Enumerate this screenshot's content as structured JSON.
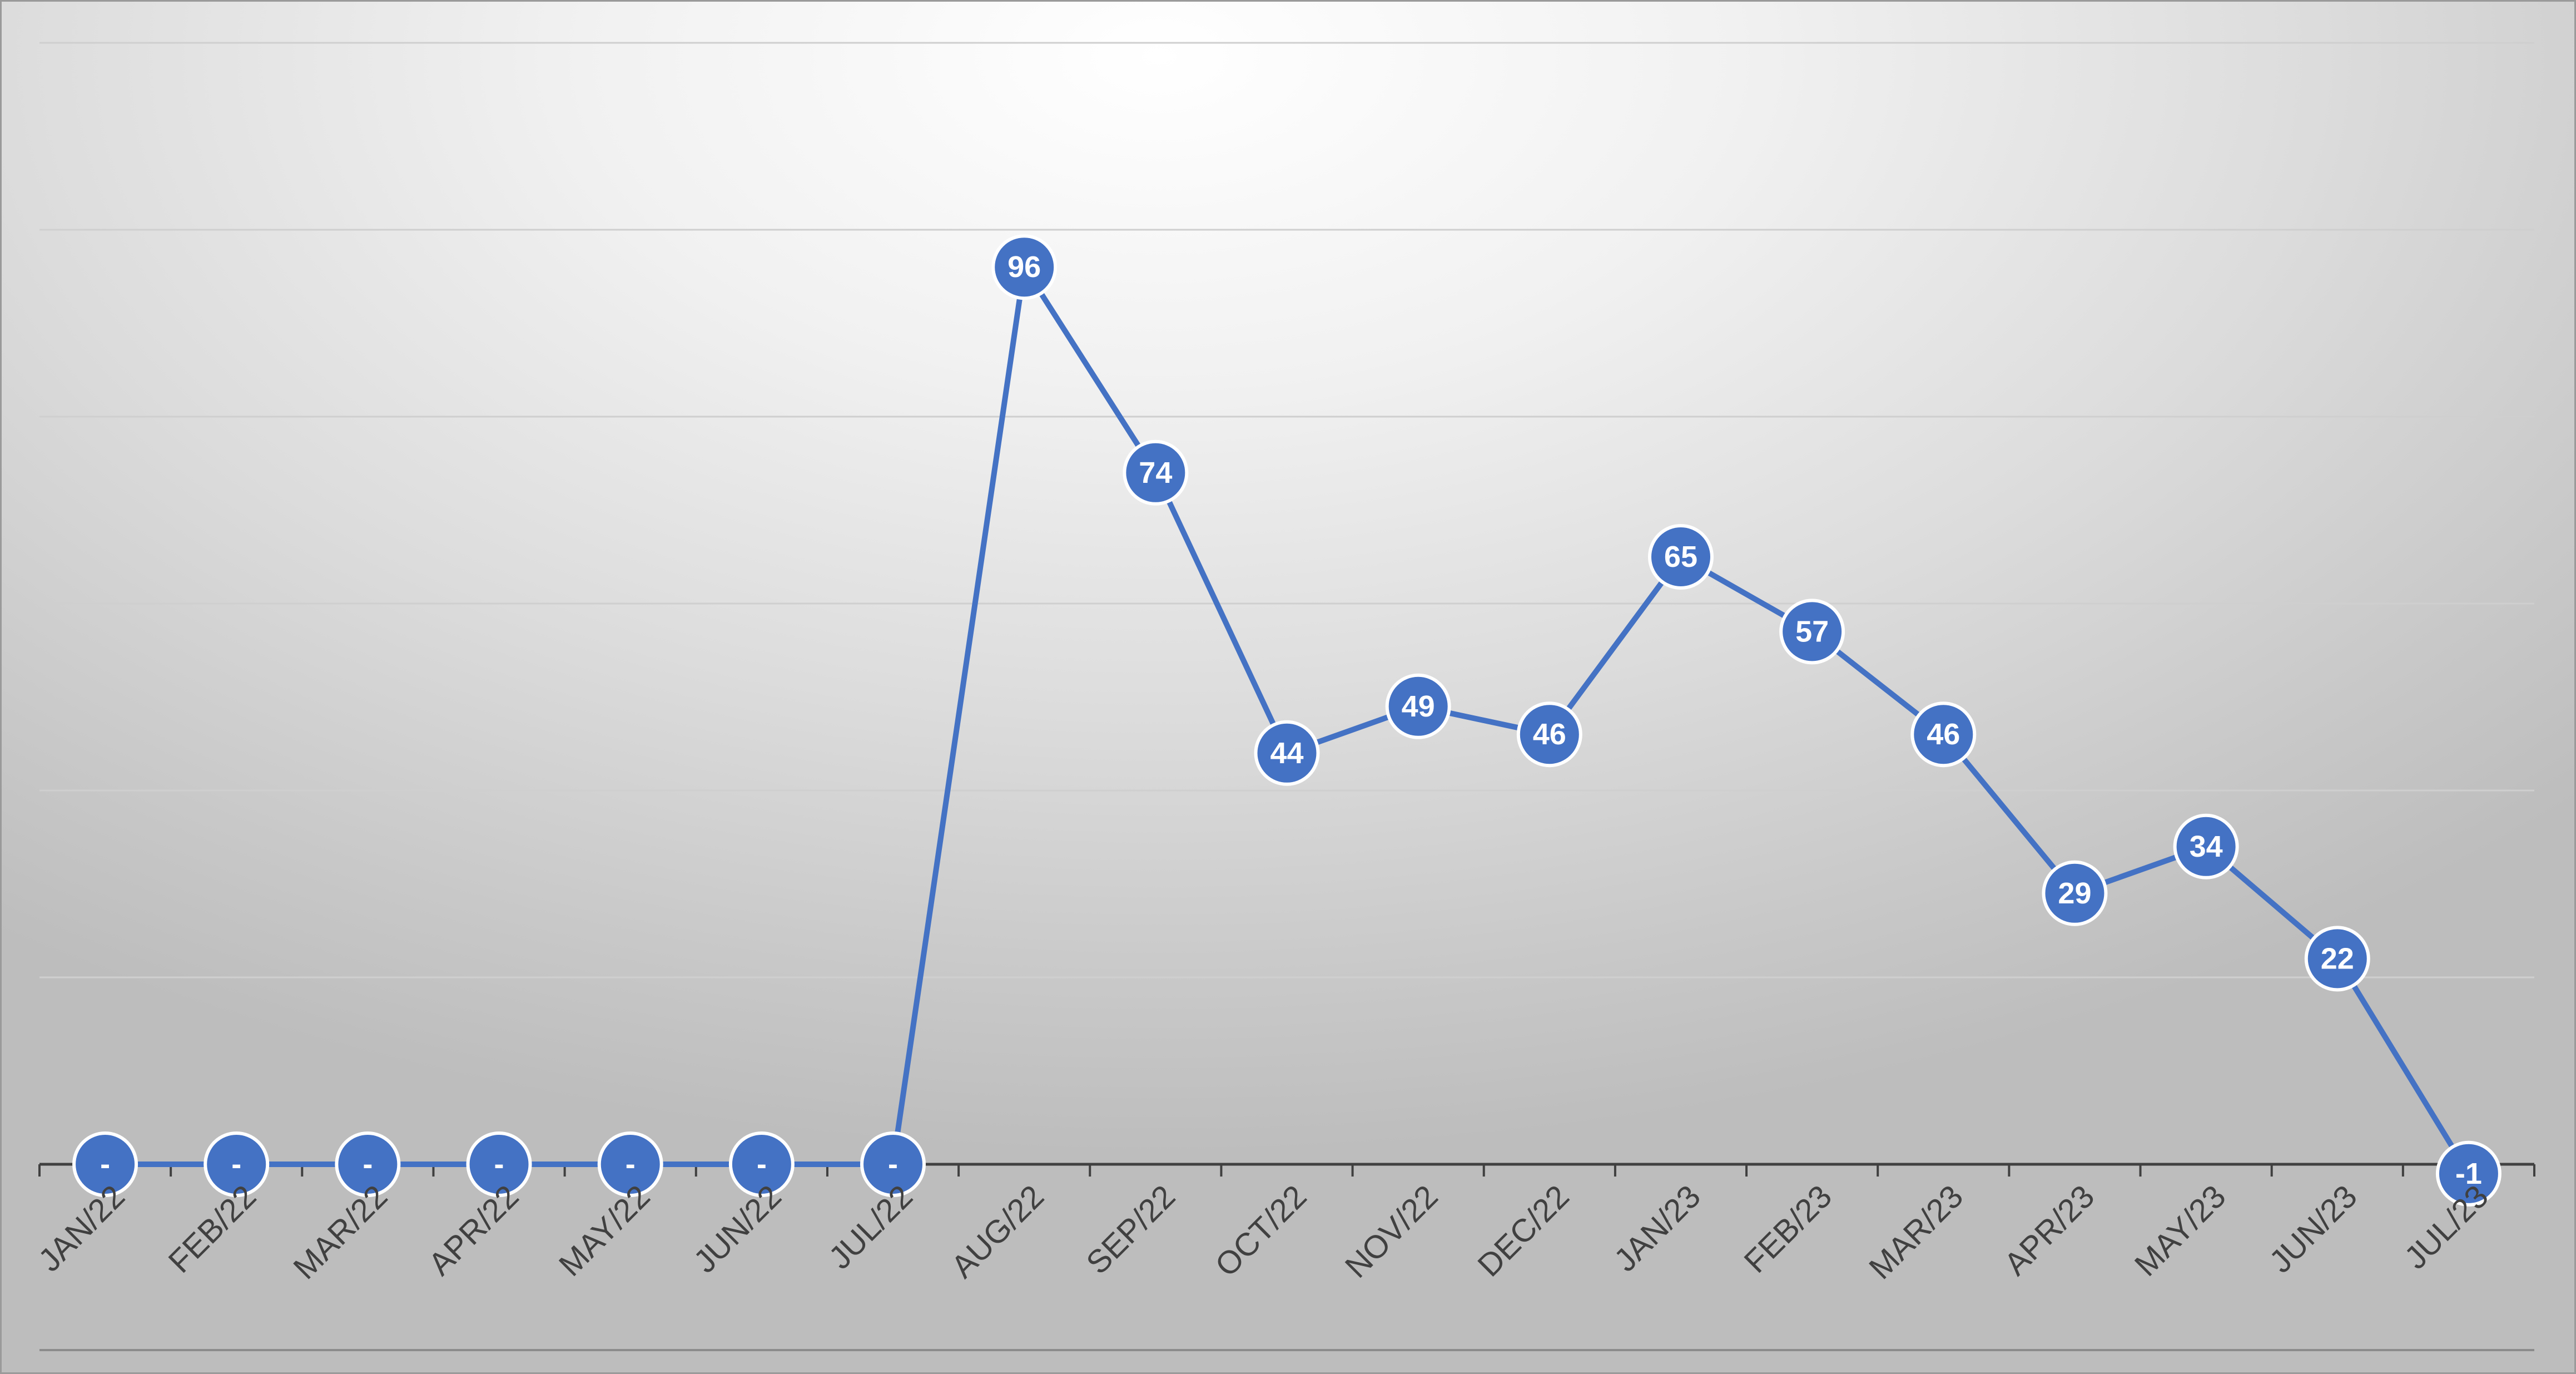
{
  "chart_data": {
    "type": "line",
    "categories": [
      "JAN/22",
      "FEB/22",
      "MAR/22",
      "APR/22",
      "MAY/22",
      "JUN/22",
      "JUL/22",
      "AUG/22",
      "SEP/22",
      "OCT/22",
      "NOV/22",
      "DEC/22",
      "JAN/23",
      "FEB/23",
      "MAR/23",
      "APR/23",
      "MAY/23",
      "JUN/23",
      "JUL/23"
    ],
    "series": [
      {
        "values": [
          0,
          0,
          0,
          0,
          0,
          0,
          0,
          96,
          74,
          44,
          49,
          46,
          65,
          57,
          46,
          29,
          34,
          22,
          -1
        ],
        "labels": [
          "-",
          "-",
          "-",
          "-",
          "-",
          "-",
          "-",
          "96",
          "74",
          "44",
          "49",
          "46",
          "65",
          "57",
          "46",
          "29",
          "34",
          "22",
          "-1"
        ],
        "color": "#4472c4"
      }
    ],
    "ylim": [
      -20,
      120
    ],
    "gridlines": [
      -20,
      20,
      40,
      60,
      80,
      100,
      120
    ],
    "grid": true,
    "legend": "none"
  }
}
